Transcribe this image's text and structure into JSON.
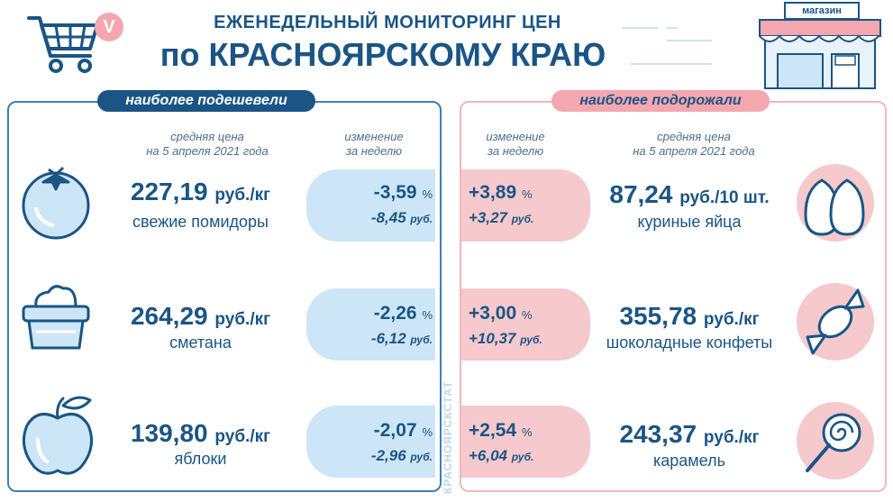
{
  "header": {
    "line1": "ЕЖЕНЕДЕЛЬНЫЙ МОНИТОРИНГ ЦЕН",
    "line2": "по КРАСНОЯРСКОМУ КРАЮ",
    "shop_sign": "магазин",
    "badge": "V"
  },
  "left": {
    "label": "наиболее подешевели",
    "col_price_1": "средняя цена",
    "col_price_2": "на 5 апреля 2021 года",
    "col_change_1": "изменение",
    "col_change_2": "за неделю",
    "items": [
      {
        "price": "227,19",
        "unit": "руб./кг",
        "name": "свежие помидоры",
        "pct": "-3,59",
        "pct_unit": "%",
        "rub": "-8,45",
        "rub_unit": "руб.",
        "icon": "tomato-icon"
      },
      {
        "price": "264,29",
        "unit": "руб./кг",
        "name": "сметана",
        "pct": "-2,26",
        "pct_unit": "%",
        "rub": "-6,12",
        "rub_unit": "руб.",
        "icon": "sour-cream-icon"
      },
      {
        "price": "139,80",
        "unit": "руб./кг",
        "name": "яблоки",
        "pct": "-2,07",
        "pct_unit": "%",
        "rub": "-2,96",
        "rub_unit": "руб.",
        "icon": "apple-icon"
      }
    ]
  },
  "right": {
    "label": "наиболее подорожали",
    "col_change_1": "изменение",
    "col_change_2": "за неделю",
    "col_price_1": "средняя цена",
    "col_price_2": "на 5 апреля 2021 года",
    "items": [
      {
        "price": "87,24",
        "unit": "руб./10 шт.",
        "name": "куриные яйца",
        "pct": "+3,89",
        "pct_unit": "%",
        "rub": "+3,27",
        "rub_unit": "руб.",
        "icon": "eggs-icon"
      },
      {
        "price": "355,78",
        "unit": "руб./кг",
        "name": "шоколадные конфеты",
        "pct": "+3,00",
        "pct_unit": "%",
        "rub": "+10,37",
        "rub_unit": "руб.",
        "icon": "candy-icon"
      },
      {
        "price": "243,37",
        "unit": "руб./кг",
        "name": "карамель",
        "pct": "+2,54",
        "pct_unit": "%",
        "rub": "+6,04",
        "rub_unit": "руб.",
        "icon": "lollipop-icon"
      }
    ]
  },
  "source": "КРАСНОЯРСКСТАТ",
  "colors": {
    "blue": "#1a5585",
    "light_blue": "#cde6f7",
    "pink": "#f6c9cc",
    "pink_border": "#f1b7bc"
  }
}
